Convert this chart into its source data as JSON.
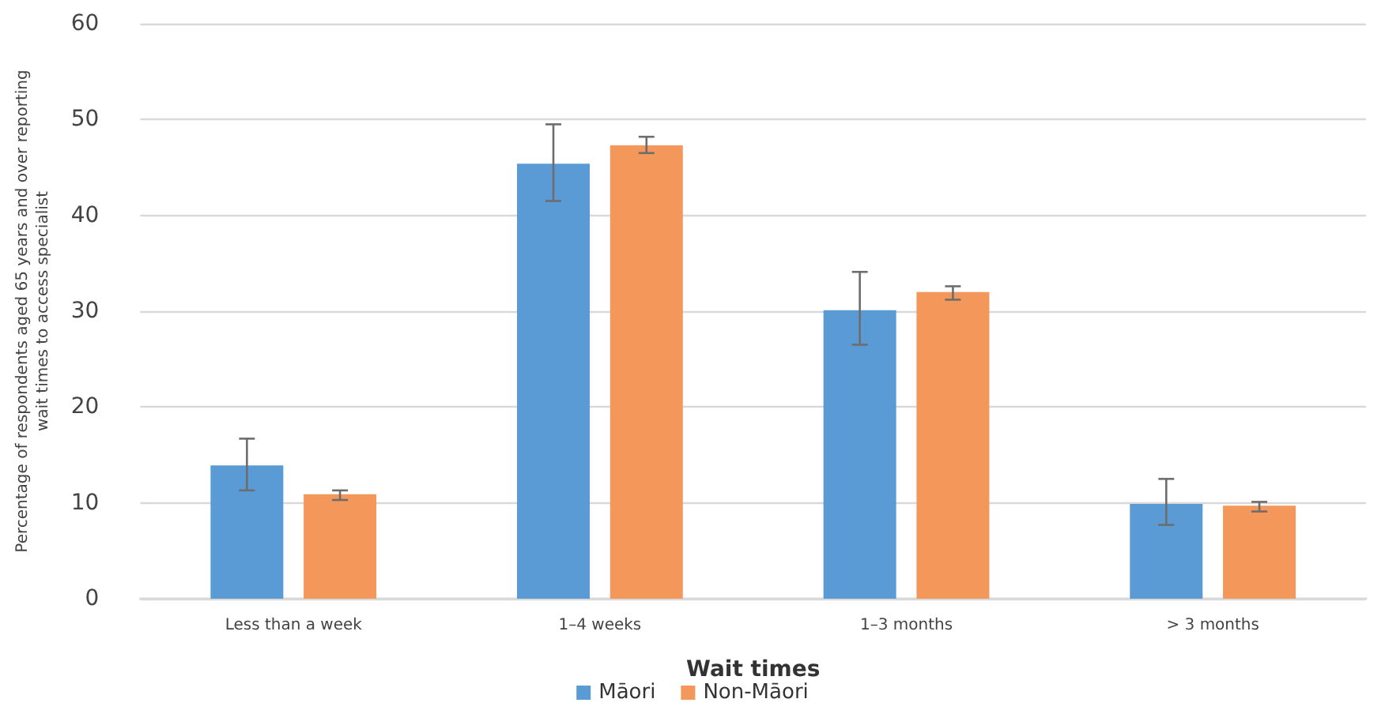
{
  "chart_data": {
    "type": "bar",
    "xlabel": "Wait times",
    "ylabel": "Percentage of respondents aged 65 years and over reporting wait times to access specialist",
    "categories": [
      "Less than a week",
      "1–4 weeks",
      "1–3 months",
      "> 3 months"
    ],
    "series": [
      {
        "name": "Māori",
        "color": "#5b9bd5",
        "values": [
          13.9,
          45.4,
          30.1,
          9.9
        ],
        "errors": [
          [
            11.3,
            16.7
          ],
          [
            41.5,
            49.5
          ],
          [
            26.5,
            34.1
          ],
          [
            7.7,
            12.5
          ]
        ]
      },
      {
        "name": "Non-Māori",
        "color": "#f4975a",
        "values": [
          10.9,
          47.3,
          32.0,
          9.7
        ],
        "errors": [
          [
            10.3,
            11.3
          ],
          [
            46.5,
            48.2
          ],
          [
            31.2,
            32.6
          ],
          [
            9.1,
            10.1
          ]
        ]
      }
    ],
    "ylim": [
      0,
      60
    ],
    "yticks": [
      0,
      10,
      20,
      30,
      40,
      50,
      60
    ],
    "grid": "y",
    "legend": "bottom"
  }
}
